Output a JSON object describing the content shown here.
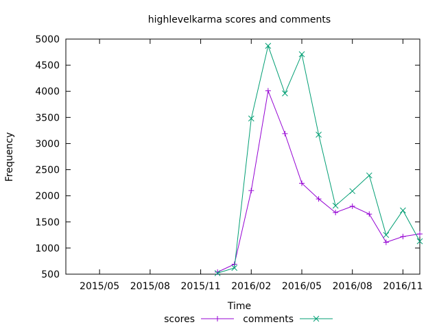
{
  "chart_data": {
    "type": "line",
    "title": "highlevelkarma scores and comments",
    "xlabel": "Time",
    "ylabel": "Frequency",
    "xlim": [
      "2015-03",
      "2016-12"
    ],
    "ylim": [
      500,
      5000
    ],
    "x_ticks": [
      "2015/05",
      "2015/08",
      "2015/11",
      "2016/02",
      "2016/05",
      "2016/08",
      "2016/11"
    ],
    "y_ticks": [
      500,
      1000,
      1500,
      2000,
      2500,
      3000,
      3500,
      4000,
      4500,
      5000
    ],
    "grid": false,
    "legend_position": "bottom",
    "x": [
      "2015-12",
      "2016-01",
      "2016-02",
      "2016-03",
      "2016-04",
      "2016-05",
      "2016-06",
      "2016-07",
      "2016-08",
      "2016-09",
      "2016-10",
      "2016-11",
      "2016-12"
    ],
    "series": [
      {
        "name": "scores",
        "color": "#9400d3",
        "marker": "plus",
        "values": [
          540,
          690,
          2100,
          4010,
          3190,
          2240,
          1940,
          1680,
          1800,
          1650,
          1110,
          1220,
          1270
        ]
      },
      {
        "name": "comments",
        "color": "#009e73",
        "marker": "cross",
        "values": [
          520,
          620,
          3480,
          4870,
          3960,
          4710,
          3170,
          1810,
          2090,
          2390,
          1250,
          1720,
          1130
        ]
      }
    ]
  }
}
